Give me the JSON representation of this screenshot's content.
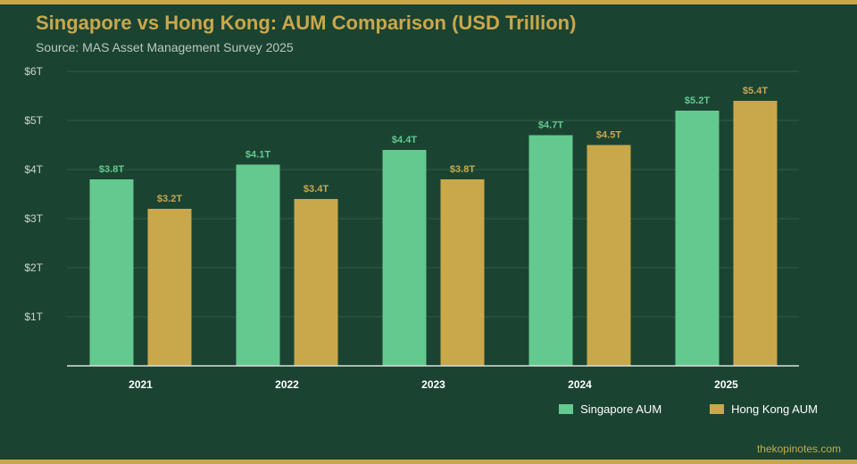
{
  "header": {
    "title": "Singapore vs Hong Kong: AUM Comparison (USD Trillion)",
    "subtitle": "Source: MAS Asset Management Survey 2025"
  },
  "footer": {
    "credit": "thekopinotes.com"
  },
  "colors": {
    "background": "#1B4332",
    "accent": "#C9A84C",
    "singapore": "#64C98F",
    "hong_kong": "#C9A84C"
  },
  "chart_data": {
    "type": "bar",
    "title": "Singapore vs Hong Kong: AUM Comparison (USD Trillion)",
    "subtitle": "Source: MAS Asset Management Survey 2025",
    "xlabel": "",
    "ylabel": "",
    "categories": [
      "2021",
      "2022",
      "2023",
      "2024",
      "2025"
    ],
    "series": [
      {
        "name": "Singapore AUM",
        "values": [
          3.8,
          4.1,
          4.4,
          4.7,
          5.2
        ],
        "labels": [
          "$3.8T",
          "$4.1T",
          "$4.4T",
          "$4.7T",
          "$5.2T"
        ],
        "color": "#64C98F"
      },
      {
        "name": "Hong Kong AUM",
        "values": [
          3.2,
          3.4,
          3.8,
          4.5,
          5.4
        ],
        "labels": [
          "$3.2T",
          "$3.4T",
          "$3.8T",
          "$4.5T",
          "$5.4T"
        ],
        "color": "#C9A84C"
      }
    ],
    "ylim": [
      0,
      6
    ],
    "yticks": [
      1,
      2,
      3,
      4,
      5,
      6
    ],
    "ytick_labels": [
      "$1T",
      "$2T",
      "$3T",
      "$4T",
      "$5T",
      "$6T"
    ],
    "grid": true,
    "legend": "bottom-right"
  }
}
